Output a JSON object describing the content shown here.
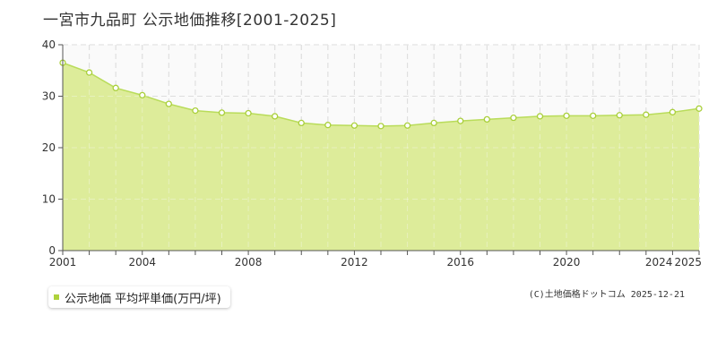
{
  "title": "一宮市九品町  公示地価推移[2001-2025]",
  "legend": {
    "label": "公示地価 平均坪単価(万円/坪)"
  },
  "copyright": "(C)土地価格ドットコム 2025-12-21",
  "colors": {
    "fill": "#dbeb95",
    "line": "#b9dc5a",
    "marker_fill": "#ffffff",
    "marker_stroke": "#a9cf3a",
    "grid": "#cccccc"
  },
  "chart_data": {
    "type": "area",
    "x": [
      2001,
      2002,
      2003,
      2004,
      2005,
      2006,
      2007,
      2008,
      2009,
      2010,
      2011,
      2012,
      2013,
      2014,
      2015,
      2016,
      2017,
      2018,
      2019,
      2020,
      2021,
      2022,
      2023,
      2024,
      2025
    ],
    "series": [
      {
        "name": "公示地価 平均坪単価(万円/坪)",
        "values": [
          36.5,
          34.6,
          31.6,
          30.2,
          28.5,
          27.2,
          26.8,
          26.7,
          26.1,
          24.8,
          24.4,
          24.3,
          24.2,
          24.3,
          24.8,
          25.2,
          25.5,
          25.8,
          26.1,
          26.2,
          26.2,
          26.3,
          26.4,
          26.9,
          27.6
        ]
      }
    ],
    "xticks": [
      2001,
      2004,
      2008,
      2012,
      2016,
      2020,
      2024,
      2025
    ],
    "yticks": [
      0,
      10,
      20,
      30,
      40
    ],
    "xlim": [
      2001,
      2025
    ],
    "ylim": [
      0,
      40
    ],
    "grid": true
  }
}
